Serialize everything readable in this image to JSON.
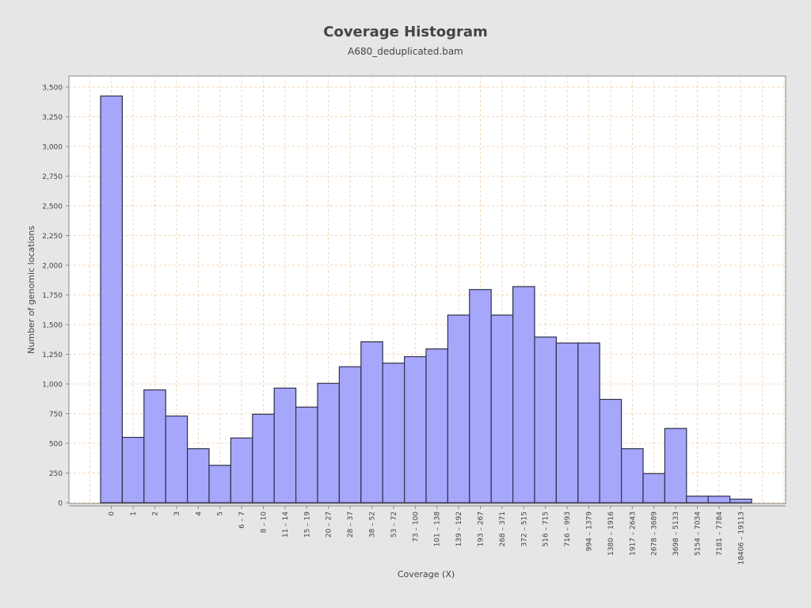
{
  "chart_data": {
    "type": "bar",
    "title": "Coverage Histogram",
    "subtitle": "A680_deduplicated.bam",
    "xlabel": "Coverage (X)",
    "ylabel": "Number of genomic locations",
    "ylim": [
      0,
      3600
    ],
    "yticks": [
      0,
      250,
      500,
      750,
      1000,
      1250,
      1500,
      1750,
      2000,
      2250,
      2500,
      2750,
      3000,
      3250,
      3500
    ],
    "ytick_labels": [
      "0",
      "250",
      "500",
      "750",
      "1,000",
      "1,250",
      "1,500",
      "1,750",
      "2,000",
      "2,250",
      "2,500",
      "2,750",
      "3,000",
      "3,250",
      "3,500"
    ],
    "categories": [
      "0",
      "1",
      "2",
      "3",
      "4",
      "5",
      "6 – 7",
      "8 – 10",
      "11 – 14",
      "15 – 19",
      "20 – 27",
      "28 – 37",
      "38 – 52",
      "53 – 72",
      "73 – 100",
      "101 – 138",
      "139 – 192",
      "193 – 267",
      "268 – 371",
      "372 – 515",
      "516 – 715",
      "716 – 993",
      "994 – 1379",
      "1380 – 1916",
      "1917 – 2643",
      "2678 – 3689",
      "3698 – 5133",
      "5154 – 7034",
      "7181 – 7784",
      "18406 – 19113"
    ],
    "values": [
      3425,
      550,
      950,
      730,
      455,
      315,
      545,
      745,
      965,
      805,
      1005,
      1145,
      1355,
      1175,
      1230,
      1295,
      1580,
      1795,
      1580,
      1820,
      1395,
      1345,
      1345,
      870,
      455,
      245,
      625,
      55,
      55,
      30
    ],
    "grid": true,
    "colors": {
      "bar_fill": "#a6a6fb",
      "bar_stroke": "#30304a",
      "grid": "#f0c8a0",
      "plot_bg": "#ffffff",
      "axis": "#888888"
    }
  }
}
